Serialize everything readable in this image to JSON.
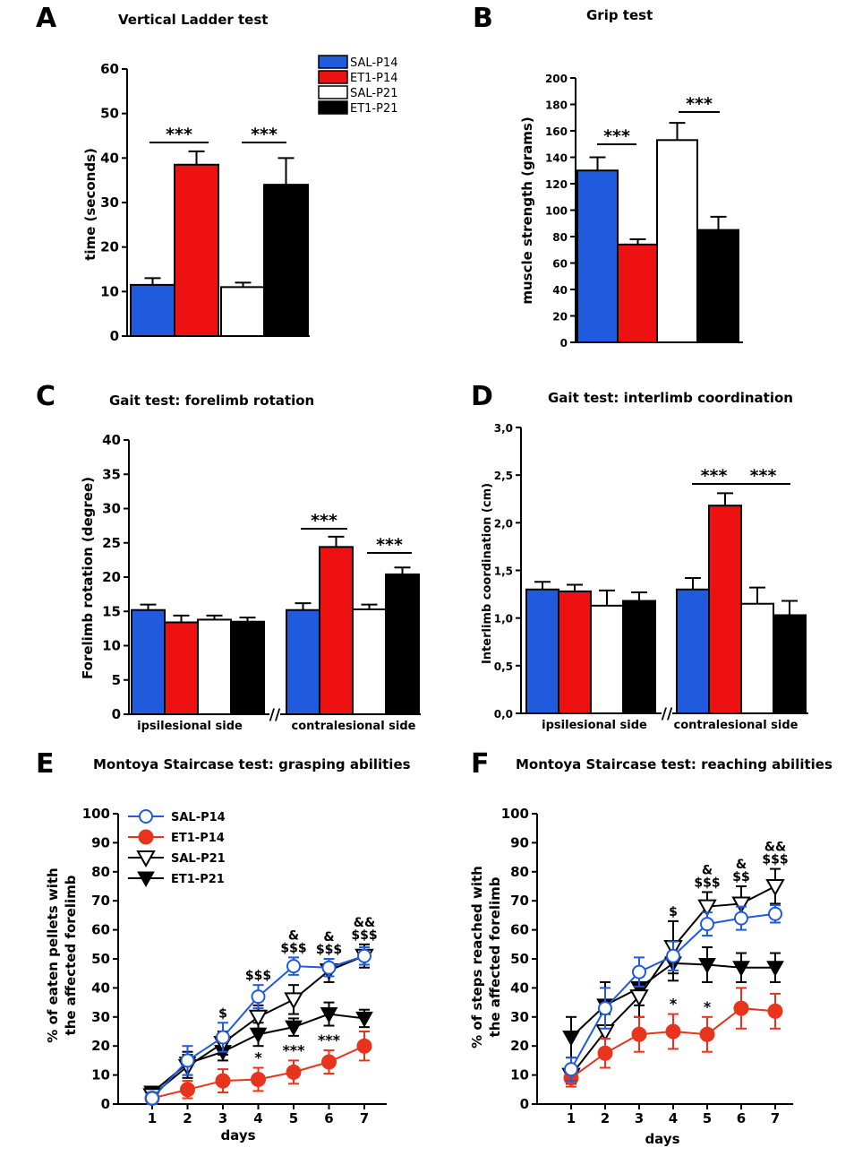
{
  "colors": {
    "blue": "#1f5bdc",
    "red": "#ee1111",
    "white": "#ffffff",
    "black": "#000000",
    "lineBlue": "#1f5bdc",
    "lineRed": "#e8341c"
  },
  "chart_data": [
    {
      "id": "A",
      "panel_label": "A",
      "type": "bar",
      "title": "Vertical Ladder test",
      "ylabel": "time (seconds)",
      "ylim": [
        0,
        60
      ],
      "yticks": [
        "0",
        "10",
        "20",
        "30",
        "40",
        "50",
        "60"
      ],
      "series": [
        {
          "name": "SAL-P14",
          "color": "blue",
          "value": 11.5,
          "err": 1.5
        },
        {
          "name": "ET1-P14",
          "color": "red",
          "value": 38.5,
          "err": 3.0
        },
        {
          "name": "SAL-P21",
          "color": "white",
          "value": 11,
          "err": 1.0
        },
        {
          "name": "ET1-P21",
          "color": "black",
          "value": 34,
          "err": 6.0
        }
      ],
      "legend": [
        "SAL-P14",
        "ET1-P14",
        "SAL-P21",
        "ET1-P21"
      ],
      "significance": [
        "***",
        "***"
      ]
    },
    {
      "id": "B",
      "panel_label": "B",
      "type": "bar",
      "title": "Grip test",
      "ylabel": "muscle strength (grams)",
      "ylim": [
        0,
        200
      ],
      "yticks": [
        "0",
        "20",
        "40",
        "60",
        "80",
        "100",
        "120",
        "140",
        "160",
        "180",
        "200"
      ],
      "series": [
        {
          "name": "SAL-P14",
          "color": "blue",
          "value": 130,
          "err": 10
        },
        {
          "name": "ET1-P14",
          "color": "red",
          "value": 74,
          "err": 4
        },
        {
          "name": "SAL-P21",
          "color": "white",
          "value": 153,
          "err": 13
        },
        {
          "name": "ET1-P21",
          "color": "black",
          "value": 85,
          "err": 10
        }
      ],
      "significance": [
        "***",
        "***"
      ]
    },
    {
      "id": "C",
      "panel_label": "C",
      "type": "bar",
      "title": "Gait test: forelimb rotation",
      "ylabel": "Forelimb rotation (degree)",
      "ylim": [
        0,
        40
      ],
      "yticks": [
        "0",
        "5",
        "10",
        "15",
        "20",
        "25",
        "30",
        "35",
        "40"
      ],
      "categories": [
        "ipsilesional side",
        "contralesional side"
      ],
      "break_marker": "//",
      "groups": [
        [
          {
            "color": "blue",
            "value": 15.2,
            "err": 0.8
          },
          {
            "color": "red",
            "value": 13.4,
            "err": 1.0
          },
          {
            "color": "white",
            "value": 13.8,
            "err": 0.6
          },
          {
            "color": "black",
            "value": 13.5,
            "err": 0.6
          }
        ],
        [
          {
            "color": "blue",
            "value": 15.2,
            "err": 1.0
          },
          {
            "color": "red",
            "value": 24.4,
            "err": 1.5
          },
          {
            "color": "white",
            "value": 15.3,
            "err": 0.7
          },
          {
            "color": "black",
            "value": 20.4,
            "err": 1.0
          }
        ]
      ],
      "significance": [
        "***",
        "***"
      ]
    },
    {
      "id": "D",
      "panel_label": "D",
      "type": "bar",
      "title": "Gait test: interlimb coordination",
      "ylabel": "Interlimb coordination (cm)",
      "ylim": [
        0,
        3
      ],
      "yticks": [
        "0,0",
        "0,5",
        "1,0",
        "1,5",
        "2,0",
        "2,5",
        "3,0"
      ],
      "categories": [
        "ipsilesional side",
        "contralesional side"
      ],
      "break_marker": "//",
      "groups": [
        [
          {
            "color": "blue",
            "value": 1.3,
            "err": 0.08
          },
          {
            "color": "red",
            "value": 1.28,
            "err": 0.07
          },
          {
            "color": "white",
            "value": 1.13,
            "err": 0.16
          },
          {
            "color": "black",
            "value": 1.18,
            "err": 0.09
          }
        ],
        [
          {
            "color": "blue",
            "value": 1.3,
            "err": 0.12
          },
          {
            "color": "red",
            "value": 2.18,
            "err": 0.13
          },
          {
            "color": "white",
            "value": 1.15,
            "err": 0.17
          },
          {
            "color": "black",
            "value": 1.03,
            "err": 0.15
          }
        ]
      ],
      "significance": [
        "***",
        "***"
      ]
    },
    {
      "id": "E",
      "panel_label": "E",
      "type": "line",
      "title": "Montoya Staircase test: grasping abilities",
      "ylabel_line1": "% of eaten pellets with",
      "ylabel_line2": "the affected forelimb",
      "xlabel": "days",
      "ylim": [
        0,
        100
      ],
      "yticks": [
        "0",
        "10",
        "20",
        "30",
        "40",
        "50",
        "60",
        "70",
        "80",
        "90",
        "100"
      ],
      "x": [
        "1",
        "2",
        "3",
        "4",
        "5",
        "6",
        "7"
      ],
      "series": [
        {
          "name": "SAL-P14",
          "marker": "circle-open",
          "color": "lineBlue",
          "values": [
            2,
            15,
            23,
            37,
            47.5,
            47,
            51
          ],
          "err": [
            2,
            5,
            5,
            4,
            3,
            3,
            3
          ]
        },
        {
          "name": "ET1-P14",
          "marker": "circle-filled",
          "color": "lineRed",
          "values": [
            2,
            5,
            8,
            8.5,
            11,
            14.5,
            20
          ],
          "err": [
            1.5,
            3,
            4,
            4,
            4,
            4,
            5
          ]
        },
        {
          "name": "SAL-P21",
          "marker": "triangle-down-open",
          "color": "black",
          "values": [
            3,
            13,
            21,
            30,
            36,
            46,
            51
          ],
          "err": [
            2,
            4,
            4,
            4,
            5,
            4,
            4
          ]
        },
        {
          "name": "ET1-P21",
          "marker": "triangle-down-filled",
          "color": "black",
          "values": [
            4,
            14,
            18,
            24,
            26.5,
            31,
            29.5
          ],
          "err": [
            2,
            4,
            3,
            4,
            3,
            4,
            3
          ]
        }
      ],
      "annotations": [
        {
          "day": 3,
          "lines": [
            "$"
          ]
        },
        {
          "day": 4,
          "lines": [
            "$$$"
          ]
        },
        {
          "day": 5,
          "lines": [
            "&",
            "$$$"
          ]
        },
        {
          "day": 6,
          "lines": [
            "&",
            "$$$"
          ]
        },
        {
          "day": 7,
          "lines": [
            "&&",
            "$$$"
          ]
        }
      ],
      "low_annotations": [
        {
          "day": 4,
          "text": "*"
        },
        {
          "day": 5,
          "text": "***"
        },
        {
          "day": 6,
          "text": "***"
        }
      ]
    },
    {
      "id": "F",
      "panel_label": "F",
      "type": "line",
      "title": "Montoya Staircase test: reaching abilities",
      "ylabel_line1": "% of steps reached with",
      "ylabel_line2": "the affected forelimb",
      "xlabel": "days",
      "ylim": [
        0,
        100
      ],
      "yticks": [
        "0",
        "10",
        "20",
        "30",
        "40",
        "50",
        "60",
        "70",
        "80",
        "90",
        "100"
      ],
      "x": [
        "1",
        "2",
        "3",
        "4",
        "5",
        "6",
        "7"
      ],
      "series": [
        {
          "name": "SAL-P14",
          "marker": "circle-open",
          "color": "lineBlue",
          "values": [
            12,
            33,
            45.5,
            51,
            62,
            64,
            65.5
          ],
          "err": [
            4,
            7,
            5,
            5,
            4,
            4,
            3
          ]
        },
        {
          "name": "ET1-P14",
          "marker": "circle-filled",
          "color": "lineRed",
          "values": [
            9,
            17.5,
            24,
            25,
            24,
            33,
            32
          ],
          "err": [
            3,
            5,
            6,
            6,
            6,
            7,
            6
          ]
        },
        {
          "name": "SAL-P21",
          "marker": "triangle-down-open",
          "color": "black",
          "values": [
            10,
            25,
            37,
            54,
            68,
            69,
            75
          ],
          "err": [
            3,
            6,
            7,
            9,
            5,
            6,
            6
          ]
        },
        {
          "name": "ET1-P21",
          "marker": "triangle-down-filled",
          "color": "black",
          "values": [
            23,
            34,
            40,
            48.5,
            48,
            47,
            47
          ],
          "err": [
            7,
            8,
            6,
            6,
            6,
            5,
            5
          ]
        }
      ],
      "annotations": [
        {
          "day": 4,
          "lines": [
            "$"
          ]
        },
        {
          "day": 5,
          "lines": [
            "&",
            "$$$"
          ]
        },
        {
          "day": 6,
          "lines": [
            "&",
            "$$"
          ]
        },
        {
          "day": 7,
          "lines": [
            "&&",
            "$$$"
          ]
        }
      ],
      "low_annotations": [
        {
          "day": 4,
          "text": "*"
        },
        {
          "day": 5,
          "text": "*"
        }
      ]
    }
  ]
}
